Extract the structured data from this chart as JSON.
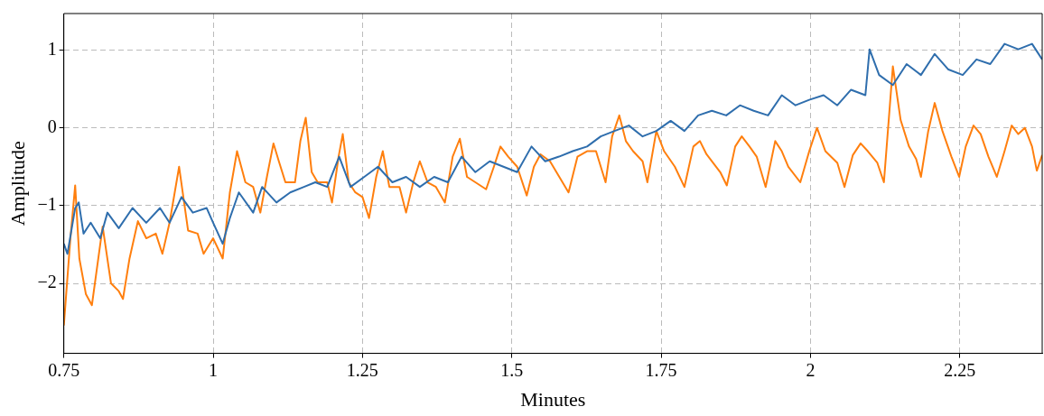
{
  "chart_data": {
    "type": "line",
    "xlabel": "Minutes",
    "ylabel": "Amplitude",
    "xlim": [
      0.75,
      2.388
    ],
    "ylim": [
      -2.9,
      1.47
    ],
    "xticks": [
      0.75,
      1,
      1.25,
      1.5,
      1.75,
      2,
      2.25
    ],
    "yticks": [
      {
        "value": -2,
        "label": "−2"
      },
      {
        "value": -1,
        "label": "−1"
      },
      0,
      1
    ],
    "grid": true,
    "line_style": "solid",
    "marker": "none",
    "series": [
      {
        "color": "#2f6ead",
        "x": [
          0.75,
          0.756,
          0.769,
          0.775,
          0.783,
          0.795,
          0.811,
          0.823,
          0.842,
          0.865,
          0.888,
          0.911,
          0.927,
          0.947,
          0.966,
          0.989,
          1.0,
          1.016,
          1.028,
          1.043,
          1.067,
          1.082,
          1.106,
          1.129,
          1.152,
          1.171,
          1.191,
          1.211,
          1.23,
          1.253,
          1.276,
          1.3,
          1.323,
          1.346,
          1.37,
          1.393,
          1.416,
          1.439,
          1.463,
          1.486,
          1.509,
          1.533,
          1.556,
          1.579,
          1.602,
          1.626,
          1.649,
          1.672,
          1.696,
          1.719,
          1.742,
          1.766,
          1.789,
          1.812,
          1.835,
          1.859,
          1.882,
          1.905,
          1.929,
          1.952,
          1.975,
          1.998,
          2.022,
          2.045,
          2.068,
          2.092,
          2.099,
          2.115,
          2.138,
          2.161,
          2.185,
          2.208,
          2.231,
          2.255,
          2.278,
          2.301,
          2.325,
          2.348,
          2.371,
          2.388
        ],
        "values": [
          -1.49,
          -1.62,
          -1.03,
          -0.96,
          -1.36,
          -1.22,
          -1.42,
          -1.09,
          -1.29,
          -1.03,
          -1.22,
          -1.03,
          -1.22,
          -0.89,
          -1.09,
          -1.03,
          -1.22,
          -1.49,
          -1.16,
          -0.83,
          -1.09,
          -0.76,
          -0.96,
          -0.83,
          -0.76,
          -0.7,
          -0.76,
          -0.37,
          -0.76,
          -0.63,
          -0.5,
          -0.7,
          -0.63,
          -0.76,
          -0.63,
          -0.7,
          -0.37,
          -0.57,
          -0.43,
          -0.5,
          -0.57,
          -0.24,
          -0.43,
          -0.37,
          -0.3,
          -0.24,
          -0.11,
          -0.04,
          0.03,
          -0.11,
          -0.04,
          0.09,
          -0.04,
          0.16,
          0.22,
          0.16,
          0.29,
          0.22,
          0.16,
          0.42,
          0.29,
          0.36,
          0.42,
          0.29,
          0.49,
          0.42,
          1.01,
          0.68,
          0.55,
          0.82,
          0.68,
          0.95,
          0.75,
          0.68,
          0.88,
          0.82,
          1.08,
          1.01,
          1.08,
          0.88
        ]
      },
      {
        "color": "#ff7f0e",
        "x": [
          0.75,
          0.761,
          0.769,
          0.776,
          0.787,
          0.797,
          0.815,
          0.829,
          0.842,
          0.849,
          0.86,
          0.874,
          0.888,
          0.904,
          0.915,
          0.927,
          0.943,
          0.958,
          0.974,
          0.984,
          1.0,
          1.016,
          1.028,
          1.04,
          1.054,
          1.067,
          1.079,
          1.09,
          1.101,
          1.11,
          1.121,
          1.137,
          1.146,
          1.155,
          1.165,
          1.175,
          1.191,
          1.199,
          1.21,
          1.217,
          1.227,
          1.238,
          1.25,
          1.261,
          1.273,
          1.284,
          1.295,
          1.312,
          1.323,
          1.335,
          1.346,
          1.359,
          1.373,
          1.388,
          1.401,
          1.413,
          1.425,
          1.439,
          1.457,
          1.47,
          1.481,
          1.494,
          1.509,
          1.525,
          1.537,
          1.548,
          1.564,
          1.595,
          1.61,
          1.626,
          1.641,
          1.657,
          1.668,
          1.68,
          1.691,
          1.703,
          1.719,
          1.727,
          1.742,
          1.755,
          1.773,
          1.789,
          1.804,
          1.815,
          1.826,
          1.849,
          1.86,
          1.874,
          1.885,
          1.898,
          1.91,
          1.925,
          1.941,
          1.952,
          1.963,
          1.983,
          1.998,
          2.011,
          2.025,
          2.045,
          2.057,
          2.071,
          2.084,
          2.096,
          2.112,
          2.123,
          2.138,
          2.151,
          2.165,
          2.177,
          2.185,
          2.197,
          2.208,
          2.221,
          2.236,
          2.249,
          2.26,
          2.273,
          2.285,
          2.298,
          2.312,
          2.325,
          2.337,
          2.348,
          2.359,
          2.371,
          2.379,
          2.388
        ],
        "values": [
          -2.54,
          -1.42,
          -0.74,
          -1.68,
          -2.14,
          -2.28,
          -1.27,
          -2.0,
          -2.1,
          -2.2,
          -1.68,
          -1.2,
          -1.42,
          -1.36,
          -1.62,
          -1.22,
          -0.5,
          -1.32,
          -1.36,
          -1.62,
          -1.42,
          -1.68,
          -0.83,
          -0.3,
          -0.7,
          -0.76,
          -1.09,
          -0.63,
          -0.2,
          -0.43,
          -0.7,
          -0.7,
          -0.17,
          0.13,
          -0.57,
          -0.7,
          -0.7,
          -0.96,
          -0.37,
          -0.08,
          -0.7,
          -0.83,
          -0.89,
          -1.16,
          -0.63,
          -0.3,
          -0.76,
          -0.76,
          -1.09,
          -0.7,
          -0.43,
          -0.7,
          -0.76,
          -0.96,
          -0.37,
          -0.14,
          -0.63,
          -0.7,
          -0.79,
          -0.5,
          -0.24,
          -0.37,
          -0.5,
          -0.87,
          -0.5,
          -0.34,
          -0.43,
          -0.83,
          -0.37,
          -0.3,
          -0.3,
          -0.7,
          -0.11,
          0.16,
          -0.17,
          -0.3,
          -0.43,
          -0.7,
          -0.04,
          -0.3,
          -0.5,
          -0.76,
          -0.24,
          -0.17,
          -0.34,
          -0.57,
          -0.74,
          -0.24,
          -0.11,
          -0.24,
          -0.37,
          -0.76,
          -0.17,
          -0.3,
          -0.5,
          -0.7,
          -0.3,
          0.0,
          -0.3,
          -0.45,
          -0.76,
          -0.35,
          -0.2,
          -0.3,
          -0.45,
          -0.7,
          0.79,
          0.1,
          -0.24,
          -0.4,
          -0.63,
          -0.05,
          0.32,
          -0.04,
          -0.37,
          -0.63,
          -0.24,
          0.03,
          -0.08,
          -0.37,
          -0.63,
          -0.3,
          0.03,
          -0.08,
          0.0,
          -0.24,
          -0.55,
          -0.35
        ]
      }
    ]
  }
}
